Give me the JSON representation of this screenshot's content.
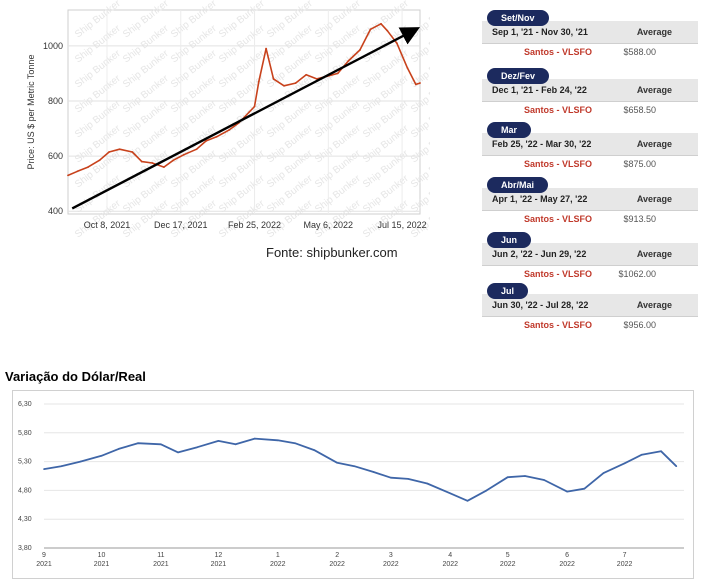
{
  "chart_data": [
    {
      "type": "line",
      "ylabel": "Price: US $ per Metric Tonne",
      "xlabel": "",
      "title": "",
      "ylim": [
        390,
        1130
      ],
      "ytick_values": [
        400,
        600,
        800,
        1000
      ],
      "ytick_labels": [
        "400",
        "600",
        "800",
        "1000"
      ],
      "xtick_labels": [
        "Oct 8, 2021",
        "Dec 17, 2021",
        "Feb 25, 2022",
        "May 6, 2022",
        "Jul 15, 2022"
      ],
      "xtick_dates": [
        "2021-10-08",
        "2021-12-17",
        "2022-02-25",
        "2022-05-06",
        "2022-07-15"
      ],
      "xlim_dates": [
        "2021-09-01",
        "2022-08-01"
      ],
      "series": [
        {
          "color": "#c8421c",
          "x": [
            "2021-09-01",
            "2021-09-10",
            "2021-09-20",
            "2021-10-01",
            "2021-10-10",
            "2021-10-20",
            "2021-11-01",
            "2021-11-10",
            "2021-11-20",
            "2021-12-01",
            "2021-12-10",
            "2021-12-20",
            "2022-01-01",
            "2022-01-10",
            "2022-01-20",
            "2022-02-01",
            "2022-02-10",
            "2022-02-20",
            "2022-02-25",
            "2022-03-01",
            "2022-03-08",
            "2022-03-15",
            "2022-03-25",
            "2022-04-05",
            "2022-04-15",
            "2022-04-25",
            "2022-05-05",
            "2022-05-15",
            "2022-05-25",
            "2022-06-05",
            "2022-06-15",
            "2022-06-25",
            "2022-07-01",
            "2022-07-10",
            "2022-07-20",
            "2022-07-28",
            "2022-08-01"
          ],
          "y": [
            530,
            545,
            560,
            585,
            615,
            625,
            615,
            580,
            575,
            560,
            585,
            605,
            625,
            655,
            670,
            695,
            720,
            760,
            780,
            870,
            990,
            880,
            855,
            865,
            895,
            880,
            890,
            900,
            945,
            985,
            1060,
            1080,
            1055,
            1010,
            920,
            860,
            865
          ]
        }
      ],
      "trend": {
        "color": "#000000",
        "x": [
          "2021-09-05",
          "2022-07-28"
        ],
        "y": [
          410,
          1060
        ]
      },
      "watermark": "Ship Bunker",
      "grid": true
    },
    {
      "type": "line",
      "title": "Variação do Dólar/Real",
      "xlabel": "",
      "ylabel": "",
      "ylim": [
        3.8,
        6.3
      ],
      "ytick_values": [
        3.8,
        4.3,
        4.8,
        5.3,
        5.8,
        6.3
      ],
      "ytick_labels": [
        "3,80",
        "4,30",
        "4,80",
        "5,30",
        "5,80",
        "6,30"
      ],
      "xtick_labels": [
        [
          "9",
          "2021"
        ],
        [
          "10",
          "2021"
        ],
        [
          "11",
          "2021"
        ],
        [
          "12",
          "2021"
        ],
        [
          "1",
          "2022"
        ],
        [
          "2",
          "2022"
        ],
        [
          "3",
          "2022"
        ],
        [
          "4",
          "2022"
        ],
        [
          "5",
          "2022"
        ],
        [
          "6",
          "2022"
        ],
        [
          "7",
          "2022"
        ]
      ],
      "xtick_dates": [
        "2021-09-01",
        "2021-10-01",
        "2021-11-01",
        "2021-12-01",
        "2022-01-01",
        "2022-02-01",
        "2022-03-01",
        "2022-04-01",
        "2022-05-01",
        "2022-06-01",
        "2022-07-01"
      ],
      "xlim_dates": [
        "2021-09-01",
        "2022-08-01"
      ],
      "series": [
        {
          "color": "#3f66a8",
          "x": [
            "2021-09-01",
            "2021-09-10",
            "2021-09-20",
            "2021-10-01",
            "2021-10-10",
            "2021-10-20",
            "2021-11-01",
            "2021-11-10",
            "2021-11-20",
            "2021-12-01",
            "2021-12-10",
            "2021-12-20",
            "2022-01-01",
            "2022-01-10",
            "2022-01-20",
            "2022-02-01",
            "2022-02-10",
            "2022-02-20",
            "2022-03-01",
            "2022-03-10",
            "2022-03-20",
            "2022-04-01",
            "2022-04-10",
            "2022-04-20",
            "2022-05-01",
            "2022-05-10",
            "2022-05-20",
            "2022-06-01",
            "2022-06-10",
            "2022-06-20",
            "2022-07-01",
            "2022-07-10",
            "2022-07-20",
            "2022-07-28"
          ],
          "y": [
            5.17,
            5.22,
            5.3,
            5.4,
            5.52,
            5.62,
            5.6,
            5.46,
            5.55,
            5.66,
            5.6,
            5.7,
            5.67,
            5.62,
            5.5,
            5.28,
            5.22,
            5.12,
            5.02,
            5.0,
            4.92,
            4.75,
            4.62,
            4.8,
            5.03,
            5.05,
            4.98,
            4.78,
            4.83,
            5.1,
            5.27,
            5.42,
            5.48,
            5.22
          ]
        }
      ],
      "grid": true
    }
  ],
  "source": "Fonte: shipbunker.com",
  "periods": [
    {
      "tag": "Set/Nov",
      "range": "Sep 1, '21 - Nov 30, '21",
      "average_label": "Average",
      "port": "Santos - VLSFO",
      "price": "$588.00"
    },
    {
      "tag": "Dez/Fev",
      "range": "Dec 1, '21 - Feb 24, '22",
      "average_label": "Average",
      "port": "Santos - VLSFO",
      "price": "$658.50"
    },
    {
      "tag": "Mar",
      "range": "Feb 25, '22 - Mar 30, '22",
      "average_label": "Average",
      "port": "Santos - VLSFO",
      "price": "$875.00"
    },
    {
      "tag": "Abr/Mai",
      "range": "Apr 1, '22 - May 27, '22",
      "average_label": "Average",
      "port": "Santos - VLSFO",
      "price": "$913.50"
    },
    {
      "tag": "Jun",
      "range": "Jun 2, '22 - Jun 29, '22",
      "average_label": "Average",
      "port": "Santos - VLSFO",
      "price": "$1062.00"
    },
    {
      "tag": "Jul",
      "range": "Jun 30, '22 - Jul 28, '22",
      "average_label": "Average",
      "port": "Santos - VLSFO",
      "price": "$956.00"
    }
  ]
}
